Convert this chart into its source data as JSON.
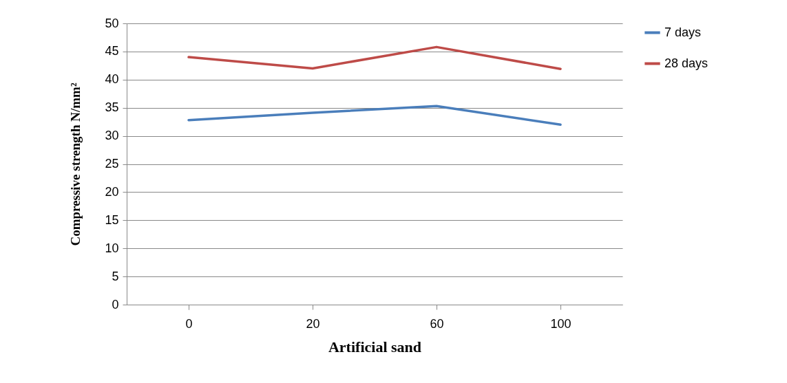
{
  "chart_data": {
    "type": "line",
    "xlabel": "Artificial sand",
    "ylabel": "Compressive strength N/mm²",
    "categories": [
      "0",
      "20",
      "60",
      "100"
    ],
    "series": [
      {
        "name": "7 days",
        "color": "#4a7ebb",
        "values": [
          32.8,
          34.1,
          35.3,
          32.0
        ]
      },
      {
        "name": "28 days",
        "color": "#be4b48",
        "values": [
          44.0,
          42.0,
          45.8,
          41.9
        ]
      }
    ],
    "ylim": [
      0,
      50
    ],
    "yticks": [
      0,
      5,
      10,
      15,
      20,
      25,
      30,
      35,
      40,
      45,
      50
    ],
    "grid": "y",
    "legend": "right",
    "marker": "none",
    "line_style": "solid"
  }
}
